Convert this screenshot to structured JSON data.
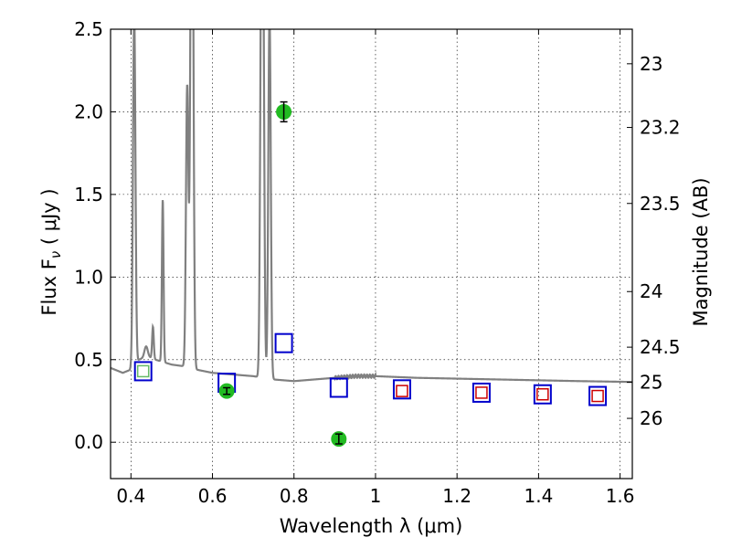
{
  "chart_data": {
    "type": "scatter",
    "xlabel": "Wavelength  λ (μm)",
    "ylabel": "Flux  F",
    "ylabel_sub": "ν",
    "ylabel_unit": "  ( μJy )",
    "y2label": "Magnitude (AB)",
    "xlim": [
      0.35,
      1.63
    ],
    "ylim": [
      -0.22,
      2.5
    ],
    "grid": true,
    "x_ticks": [
      0.4,
      0.6,
      0.8,
      1.0,
      1.2,
      1.4,
      1.6
    ],
    "x_tick_labels": [
      "0.4",
      "0.6",
      "0.8",
      "1",
      "1.2",
      "1.4",
      "1.6"
    ],
    "y_ticks": [
      0.0,
      0.5,
      1.0,
      1.5,
      2.0,
      2.5
    ],
    "y_tick_labels": [
      "0.0",
      "0.5",
      "1.0",
      "1.5",
      "2.0",
      "2.5"
    ],
    "y2_ticks": [
      {
        "mag": 23,
        "label": "23"
      },
      {
        "mag": 23.2,
        "label": "23.2"
      },
      {
        "mag": 23.5,
        "label": "23.5"
      },
      {
        "mag": 24,
        "label": "24"
      },
      {
        "mag": 24.5,
        "label": "24.5"
      },
      {
        "mag": 25,
        "label": "25"
      },
      {
        "mag": 26,
        "label": "26"
      }
    ],
    "series": [
      {
        "kind": "spectrum",
        "color": "#808080",
        "continuum": [
          [
            0.35,
            0.45
          ],
          [
            0.38,
            0.42
          ],
          [
            0.4,
            0.44
          ],
          [
            0.42,
            0.5
          ],
          [
            0.44,
            0.52
          ],
          [
            0.46,
            0.5
          ],
          [
            0.5,
            0.47
          ],
          [
            0.53,
            0.46
          ],
          [
            0.56,
            0.44
          ],
          [
            0.6,
            0.42
          ],
          [
            0.65,
            0.41
          ],
          [
            0.7,
            0.4
          ],
          [
            0.75,
            0.38
          ],
          [
            0.8,
            0.37
          ],
          [
            0.85,
            0.38
          ],
          [
            0.9,
            0.39
          ],
          [
            0.95,
            0.4
          ],
          [
            1.0,
            0.4
          ],
          [
            1.1,
            0.39
          ],
          [
            1.2,
            0.385
          ],
          [
            1.3,
            0.38
          ],
          [
            1.4,
            0.375
          ],
          [
            1.5,
            0.37
          ],
          [
            1.63,
            0.365
          ]
        ],
        "emission_lines": [
          {
            "x": 0.408,
            "peak": 2.6,
            "width": 0.003
          },
          {
            "x": 0.437,
            "peak": 0.58,
            "width": 0.004
          },
          {
            "x": 0.454,
            "peak": 0.7,
            "width": 0.002
          },
          {
            "x": 0.478,
            "peak": 1.47,
            "width": 0.002
          },
          {
            "x": 0.538,
            "peak": 2.16,
            "width": 0.003
          },
          {
            "x": 0.548,
            "peak": 2.6,
            "width": 0.003
          },
          {
            "x": 0.551,
            "peak": 2.6,
            "width": 0.003
          },
          {
            "x": 0.72,
            "peak": 2.6,
            "width": 0.003
          },
          {
            "x": 0.724,
            "peak": 2.6,
            "width": 0.003
          },
          {
            "x": 0.74,
            "peak": 2.6,
            "width": 0.003
          }
        ]
      },
      {
        "kind": "model_photometry",
        "color": "#0000cc",
        "marker": "open-square",
        "points": [
          {
            "x": 0.43,
            "y": 0.43
          },
          {
            "x": 0.635,
            "y": 0.36
          },
          {
            "x": 0.775,
            "y": 0.6
          },
          {
            "x": 0.91,
            "y": 0.33
          },
          {
            "x": 1.065,
            "y": 0.32
          },
          {
            "x": 1.26,
            "y": 0.3
          },
          {
            "x": 1.41,
            "y": 0.29
          },
          {
            "x": 1.545,
            "y": 0.28
          }
        ]
      },
      {
        "kind": "upper_limits",
        "color": "#cc0000",
        "marker": "small-open-square",
        "points": [
          {
            "x": 1.065,
            "y": 0.31
          },
          {
            "x": 1.26,
            "y": 0.3
          },
          {
            "x": 1.41,
            "y": 0.29
          },
          {
            "x": 1.545,
            "y": 0.28
          }
        ]
      },
      {
        "kind": "inner_marker",
        "color": "#66bb66",
        "marker": "small-open-square",
        "points": [
          {
            "x": 0.43,
            "y": 0.43
          }
        ]
      },
      {
        "kind": "observed",
        "color": "#22bb22",
        "marker": "filled-circle",
        "points": [
          {
            "x": 0.635,
            "y": 0.31,
            "err": 0.02
          },
          {
            "x": 0.775,
            "y": 2.0,
            "err": 0.06
          },
          {
            "x": 0.91,
            "y": 0.02,
            "err": 0.03
          }
        ]
      }
    ]
  }
}
